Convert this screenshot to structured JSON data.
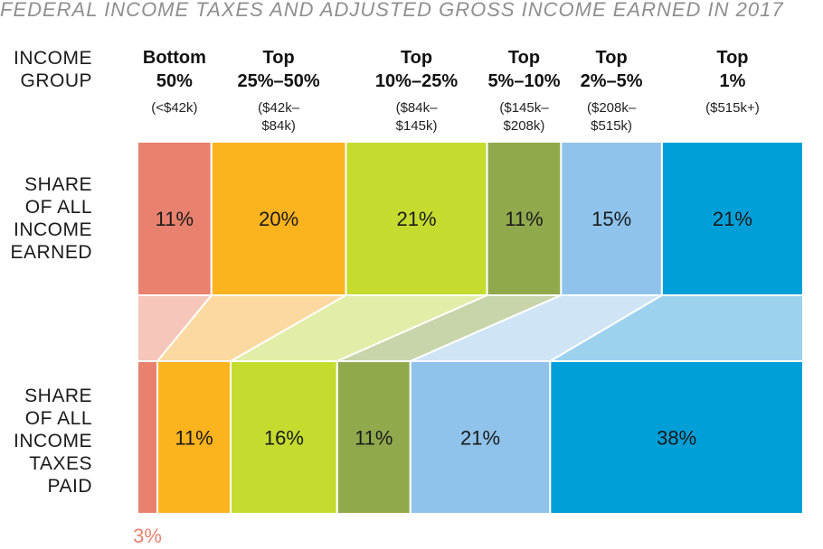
{
  "title": "FEDERAL INCOME TAXES AND ADJUSTED GROSS INCOME EARNED IN 2017",
  "row_labels": {
    "group": [
      "INCOME",
      "GROUP"
    ],
    "income": [
      "SHARE",
      "OF ALL",
      "INCOME",
      "EARNED"
    ],
    "taxes": [
      "SHARE",
      "OF ALL",
      "INCOME",
      "TAXES",
      "PAID"
    ]
  },
  "chart_data": {
    "type": "bar",
    "orientation": "horizontal-100%-stacked",
    "categories": [
      {
        "name_lines": [
          "Bottom",
          "50%"
        ],
        "range_lines": [
          "(<$42k)"
        ]
      },
      {
        "name_lines": [
          "Top",
          "25%–50%"
        ],
        "range_lines": [
          "($42k–",
          "$84k)"
        ]
      },
      {
        "name_lines": [
          "Top",
          "10%–25%"
        ],
        "range_lines": [
          "($84k–",
          "$145k)"
        ]
      },
      {
        "name_lines": [
          "Top",
          "5%–10%"
        ],
        "range_lines": [
          "($145k–",
          "$208k)"
        ]
      },
      {
        "name_lines": [
          "Top",
          "2%–5%"
        ],
        "range_lines": [
          "($208k–",
          "$515k)"
        ]
      },
      {
        "name_lines": [
          "Top",
          "1%"
        ],
        "range_lines": [
          "($515k+)"
        ]
      }
    ],
    "series": [
      {
        "name": "SHARE OF ALL INCOME EARNED",
        "values": [
          11,
          20,
          21,
          11,
          15,
          21
        ]
      },
      {
        "name": "SHARE OF ALL INCOME TAXES PAID",
        "values": [
          3,
          11,
          16,
          11,
          21,
          38
        ]
      }
    ],
    "value_suffix": "%",
    "colors": [
      "#e8826f",
      "#fbb31e",
      "#c5dc2f",
      "#91a94d",
      "#8fc3eb",
      "#009fd8"
    ],
    "connector_colors": [
      "#f5c6b9",
      "#fcd9a0",
      "#e2eda7",
      "#c8d4aa",
      "#cfe4f5",
      "#9dd2ee"
    ],
    "legend": "none",
    "grid": false
  }
}
